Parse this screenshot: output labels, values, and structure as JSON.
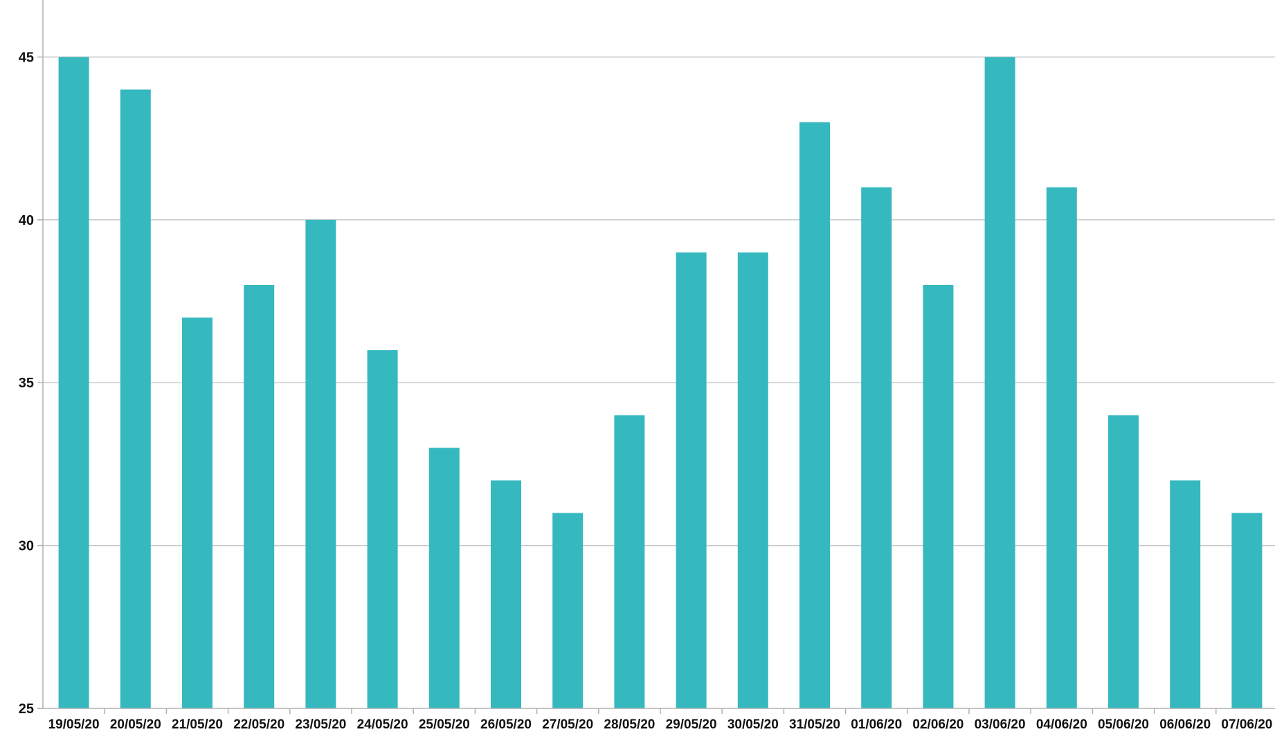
{
  "chart_data": {
    "type": "bar",
    "title": "",
    "xlabel": "",
    "ylabel": "",
    "categories": [
      "19/05/20",
      "20/05/20",
      "21/05/20",
      "22/05/20",
      "23/05/20",
      "24/05/20",
      "25/05/20",
      "26/05/20",
      "27/05/20",
      "28/05/20",
      "29/05/20",
      "30/05/20",
      "31/05/20",
      "01/06/20",
      "02/06/20",
      "03/06/20",
      "04/06/20",
      "05/06/20",
      "06/06/20",
      "07/06/20"
    ],
    "series": [
      {
        "values": [
          45,
          44,
          37,
          38,
          40,
          36,
          33,
          32,
          31,
          34,
          39,
          39,
          43,
          41,
          38,
          45,
          41,
          34,
          32,
          31
        ],
        "color": "#36b8bf"
      }
    ],
    "ylim": [
      25,
      46.75
    ],
    "yticks": [
      25,
      30,
      35,
      40,
      45
    ],
    "ytick_labels": [
      "25",
      "30",
      "35",
      "40",
      "45"
    ],
    "grid": true,
    "legend": "none"
  }
}
